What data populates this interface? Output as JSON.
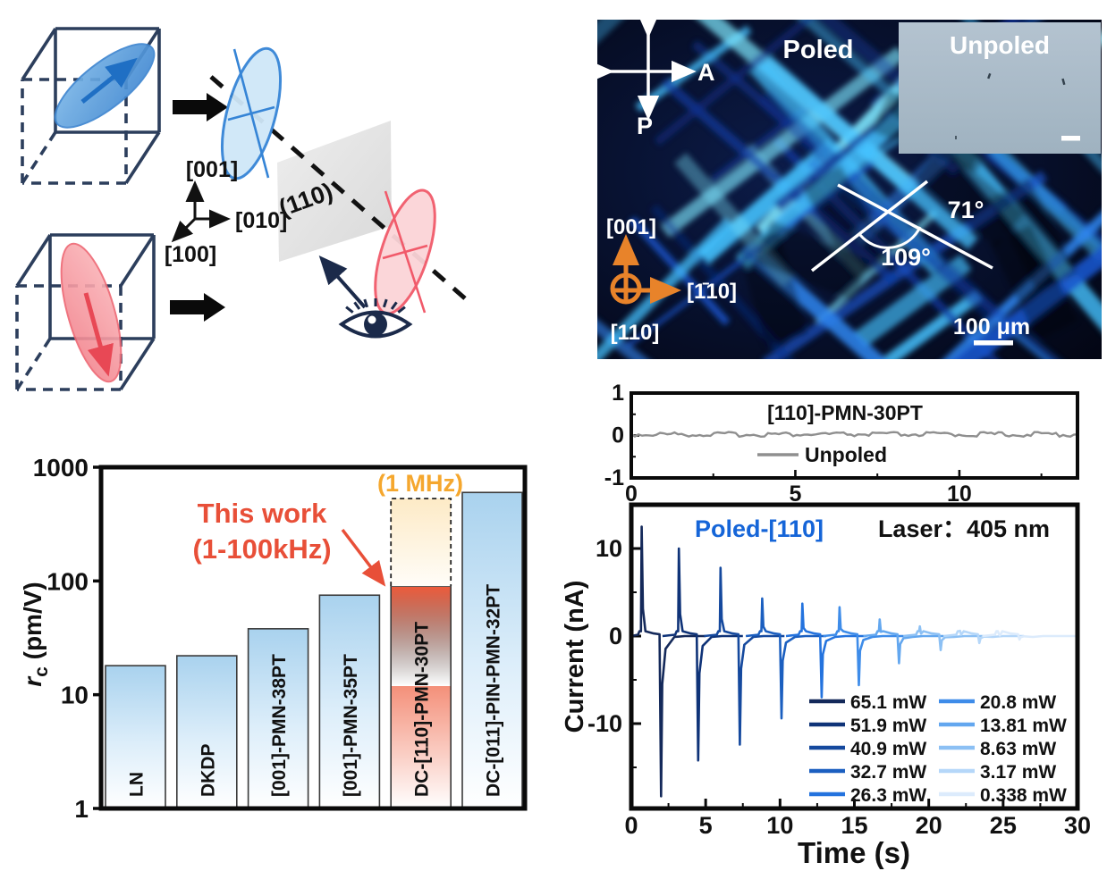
{
  "diagram": {
    "axes": {
      "up": "[001]",
      "right": "[010]",
      "front": "[100]"
    },
    "plane_label": "(110)"
  },
  "micrograph": {
    "poled_label": "Poled",
    "unpoled_label": "Unpoled",
    "analyzer": "A",
    "polarizer": "P",
    "angles": {
      "upper": "71°",
      "lower": "109°"
    },
    "axes": {
      "up": "[001]",
      "right": "[1̄10]",
      "out": "[110]"
    },
    "scale_bar": "100 μm"
  },
  "chart_data": [
    {
      "id": "rc_bar_chart",
      "type": "bar",
      "yscale": "log",
      "ylabel": "rc (pm/V)",
      "ylabel_parts": {
        "symbol": "r",
        "sub": "c",
        "unit": " (pm/V)"
      },
      "ylim": [
        1,
        1000
      ],
      "yticks": [
        1000,
        100,
        10,
        1
      ],
      "categories": [
        "LN",
        "DKDP",
        "[001]-PMN-38PT",
        "[001]-PMN-35PT",
        "DC-[110]-PMN-30PT",
        "DC-[011]-PIN-PMN-32PT"
      ],
      "values": [
        18,
        22,
        38,
        75,
        90,
        600
      ],
      "highlight_index": 4,
      "extension": {
        "applies_to": "DC-[110]-PMN-30PT",
        "value": 530,
        "label": "(1 MHz)"
      },
      "annotation": {
        "line1": "This work",
        "line2": "(1-100kHz)"
      },
      "colors": {
        "bar": "#a9d2ee",
        "highlight": "#ee5a3a",
        "annotation": "#e84f38",
        "extension_label": "#f5a72e"
      }
    },
    {
      "id": "unpoled_current_trace",
      "type": "line",
      "title": "[110]-PMN-30PT",
      "legend": [
        {
          "label": "Unpoled",
          "color": "#8f8f8f"
        }
      ],
      "xlim": [
        0,
        13.6
      ],
      "xticks": [
        0,
        5,
        10
      ],
      "ylim": [
        -1,
        1
      ],
      "yticks": [
        1,
        0,
        -1
      ],
      "baseline_value": 0
    },
    {
      "id": "poled_photocurrent",
      "type": "line",
      "title": "Poled-[110]",
      "title_color": "#1565d8",
      "annotation": "Laser：405 nm",
      "xlabel": "Time (s)",
      "ylabel": "Current (nA)",
      "xlim": [
        0,
        30
      ],
      "xticks": [
        0,
        5,
        10,
        15,
        20,
        25,
        30
      ],
      "ylim": [
        -19.6,
        14.9
      ],
      "yticks": [
        10,
        0,
        -10
      ],
      "series": [
        {
          "label": "65.1 mW",
          "color": "#14295a",
          "t_on": 0.7,
          "peak_on": 12.5,
          "t_off": 2.0,
          "peak_off": -18.3
        },
        {
          "label": "51.9 mW",
          "color": "#0f3378",
          "t_on": 3.2,
          "peak_on": 10.0,
          "t_off": 4.5,
          "peak_off": -14.2
        },
        {
          "label": "40.9 mW",
          "color": "#15499e",
          "t_on": 6.0,
          "peak_on": 7.8,
          "t_off": 7.3,
          "peak_off": -12.4
        },
        {
          "label": "32.7 mW",
          "color": "#1b5fc0",
          "t_on": 8.8,
          "peak_on": 4.3,
          "t_off": 10.1,
          "peak_off": -9.4
        },
        {
          "label": "26.3 mW",
          "color": "#2473de",
          "t_on": 11.5,
          "peak_on": 3.7,
          "t_off": 12.8,
          "peak_off": -7.0
        },
        {
          "label": "20.8 mW",
          "color": "#3e8ce9",
          "t_on": 14.0,
          "peak_on": 3.3,
          "t_off": 15.3,
          "peak_off": -5.6
        },
        {
          "label": "13.81 mW",
          "color": "#63a7ef",
          "t_on": 16.7,
          "peak_on": 1.9,
          "t_off": 18.0,
          "peak_off": -3.1
        },
        {
          "label": "8.63 mW",
          "color": "#8cc0f4",
          "t_on": 19.4,
          "peak_on": 1.1,
          "t_off": 20.8,
          "peak_off": -1.6
        },
        {
          "label": "3.17 mW",
          "color": "#b5d7f9",
          "t_on": 22.1,
          "peak_on": 0.6,
          "t_off": 23.4,
          "peak_off": -0.8
        },
        {
          "label": "0.338 mW",
          "color": "#dcebfc",
          "t_on": 24.7,
          "peak_on": 0.3,
          "t_off": 26.1,
          "peak_off": -0.4
        }
      ]
    }
  ]
}
